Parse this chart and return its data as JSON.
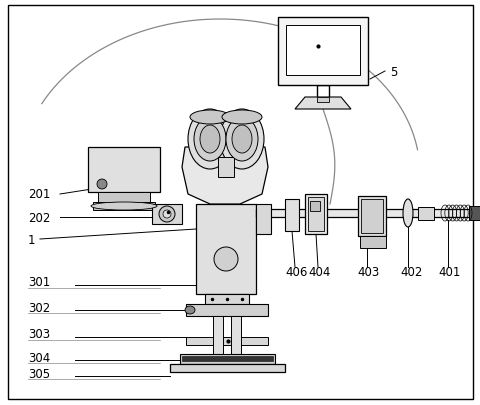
{
  "bg_color": "#ffffff",
  "line_color": "#000000",
  "label_color": "#000000",
  "font_size": 8.5,
  "fig_w": 4.81,
  "fig_h": 4.06,
  "dpi": 100
}
